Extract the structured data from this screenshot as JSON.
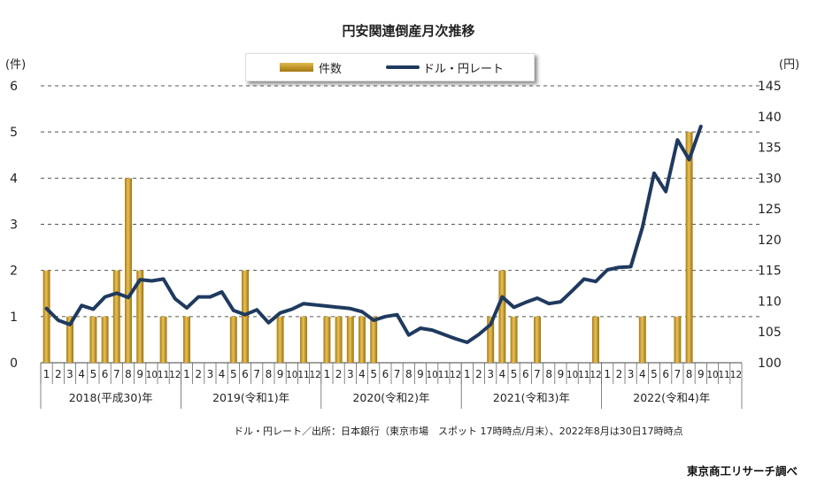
{
  "title": "円安関連倒産月次推移",
  "left_unit": "(件)",
  "right_unit": "(円)",
  "legend": {
    "bar_label": "件数",
    "line_label": "ドル・円レート"
  },
  "source_note": "ドル・円レート／出所：日本銀行（東京市場　スポット 17時時点/月末）、2022年8月は30日17時時点",
  "credit": "東京商工リサーチ調べ",
  "colors": {
    "bar": "#c79a2c",
    "line": "#1f3a5f",
    "grid": "#555555"
  },
  "chart_data": {
    "type": "bar+line",
    "y_left": {
      "range": [
        0,
        6
      ],
      "ticks": [
        "0",
        "1",
        "2",
        "3",
        "4",
        "5",
        "6"
      ]
    },
    "y_right": {
      "range": [
        100,
        145
      ],
      "ticks": [
        "100",
        "105",
        "110",
        "115",
        "120",
        "125",
        "130",
        "135",
        "140",
        "145"
      ]
    },
    "grid": "dashed horizontal",
    "month_labels": [
      "1",
      "2",
      "3",
      "4",
      "5",
      "6",
      "7",
      "8",
      "9",
      "10",
      "11",
      "12",
      "1",
      "2",
      "3",
      "4",
      "5",
      "6",
      "7",
      "8",
      "9",
      "10",
      "11",
      "12",
      "1",
      "2",
      "3",
      "4",
      "5",
      "6",
      "7",
      "8",
      "9",
      "10",
      "11",
      "12",
      "1",
      "2",
      "3",
      "4",
      "5",
      "6",
      "7",
      "8",
      "9",
      "10",
      "11",
      "12",
      "1",
      "2",
      "3",
      "4",
      "5",
      "6",
      "7",
      "8",
      "9",
      "10",
      "11",
      "12"
    ],
    "year_groups": [
      {
        "label": "2018(平成30)年",
        "months": 12
      },
      {
        "label": "2019(令和1)年",
        "months": 12
      },
      {
        "label": "2020(令和2)年",
        "months": 12
      },
      {
        "label": "2021(令和3)年",
        "months": 12
      },
      {
        "label": "2022(令和4)年",
        "months": 12
      }
    ],
    "series": [
      {
        "name": "件数",
        "type": "bar",
        "axis": "left",
        "values": [
          2,
          0,
          1,
          0,
          1,
          1,
          2,
          4,
          2,
          0,
          1,
          0,
          1,
          0,
          0,
          0,
          1,
          2,
          0,
          0,
          1,
          0,
          1,
          0,
          1,
          1,
          1,
          1,
          1,
          0,
          0,
          0,
          0,
          0,
          0,
          0,
          0,
          0,
          1,
          2,
          1,
          0,
          1,
          0,
          0,
          0,
          0,
          1,
          0,
          0,
          0,
          1,
          0,
          0,
          1,
          5,
          0,
          0,
          0,
          0
        ]
      },
      {
        "name": "ドル・円レート",
        "type": "line",
        "axis": "right",
        "values": [
          108.8,
          106.9,
          106.2,
          109.3,
          108.7,
          110.7,
          111.3,
          110.6,
          113.5,
          113.3,
          113.6,
          110.4,
          108.9,
          110.7,
          110.7,
          111.5,
          108.5,
          107.8,
          108.6,
          106.5,
          108.1,
          108.7,
          109.6,
          109.4,
          109.2,
          109.0,
          108.8,
          108.3,
          106.9,
          107.5,
          107.8,
          104.5,
          105.6,
          105.3,
          104.6,
          103.9,
          103.3,
          104.6,
          106.2,
          110.7,
          109.0,
          109.8,
          110.5,
          109.6,
          109.9,
          111.7,
          113.6,
          113.2,
          115.1,
          115.5,
          115.6,
          122.0,
          130.8,
          127.8,
          136.2,
          133.0,
          138.4
        ]
      }
    ]
  }
}
